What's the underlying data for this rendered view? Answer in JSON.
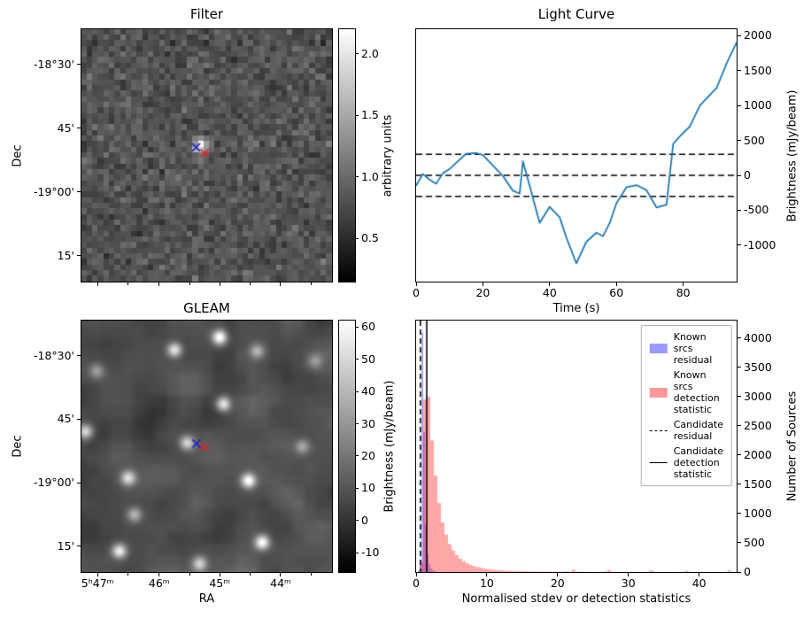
{
  "figure": {
    "background": "#ffffff"
  },
  "chart_data": [
    {
      "type": "heatmap",
      "title": "Filter",
      "ylabel": "Dec",
      "yticks": {
        "labels": [
          "-18°30'",
          "45'",
          "-19°00'",
          "15'"
        ],
        "fractions": [
          0.14,
          0.3925,
          0.645,
          0.8975
        ]
      },
      "xticks": {
        "labels": [],
        "fractions": [
          0.064,
          0.31,
          0.552,
          0.795
        ],
        "minor_fractions": [
          0.1865,
          0.4335,
          0.6735,
          0.9175
        ]
      },
      "colorbar": {
        "label": "arbitrary units",
        "tick_labels": [
          "0.5",
          "1.0",
          "1.5",
          "2.0"
        ],
        "tick_values": [
          0.5,
          1.0,
          1.5,
          2.0
        ],
        "vmin": 0.15,
        "vmax": 2.2
      },
      "image": {
        "grid": 45,
        "mean": 0.82,
        "sigma": 0.17,
        "seed": 11,
        "source": {
          "x": 0.478,
          "y": 0.462,
          "peak": 2.2
        }
      },
      "markers": [
        {
          "symbol": "x",
          "color": "#2222cc",
          "x": 0.458,
          "y": 0.468
        },
        {
          "symbol": "x",
          "color": "#d62728",
          "x": 0.492,
          "y": 0.492
        }
      ]
    },
    {
      "type": "line",
      "title": "Light Curve",
      "xlabel": "Time (s)",
      "ylabel": "Brightness (mJy/beam)",
      "line_color": "#1f77b4",
      "xlim": [
        0,
        96
      ],
      "ylim": [
        -1520,
        2090
      ],
      "xticks": [
        0,
        20,
        40,
        60,
        80
      ],
      "yticks": [
        -1000,
        -500,
        0,
        500,
        1000,
        1500,
        2000
      ],
      "threshold_lines": [
        300,
        0,
        -300
      ],
      "x": [
        0,
        2,
        4,
        6,
        8,
        10,
        12,
        15,
        18,
        20,
        23,
        26,
        29,
        31,
        32,
        34,
        37,
        40,
        43,
        45,
        48,
        51,
        54,
        56,
        58,
        60,
        63,
        66,
        69,
        72,
        75,
        77,
        79,
        82,
        85,
        88,
        90,
        93,
        96
      ],
      "y": [
        -150,
        20,
        -60,
        -120,
        30,
        90,
        180,
        310,
        320,
        290,
        140,
        -10,
        -220,
        -260,
        200,
        -150,
        -680,
        -450,
        -600,
        -890,
        -1260,
        -950,
        -820,
        -870,
        -680,
        -400,
        -170,
        -140,
        -210,
        -460,
        -420,
        450,
        560,
        700,
        1000,
        1150,
        1250,
        1600,
        1900
      ]
    },
    {
      "type": "heatmap",
      "title": "GLEAM",
      "xlabel": "RA",
      "ylabel": "Dec",
      "yticks": {
        "labels": [
          "-18°30'",
          "45'",
          "-19°00'",
          "15'"
        ],
        "fractions": [
          0.14,
          0.3925,
          0.645,
          0.8975
        ]
      },
      "xticks": {
        "labels": [
          "5ʰ47ᵐ",
          "46ᵐ",
          "45ᵐ",
          "44ᵐ"
        ],
        "fractions": [
          0.064,
          0.31,
          0.552,
          0.795
        ],
        "minor_fractions": [
          0.1865,
          0.4335,
          0.6735,
          0.9175
        ]
      },
      "colorbar": {
        "label": "Brightness (mJy/beam)",
        "tick_labels": [
          "-10",
          "0",
          "10",
          "20",
          "30",
          "40",
          "50",
          "60"
        ],
        "tick_values": [
          -10,
          0,
          10,
          20,
          30,
          40,
          50,
          60
        ],
        "vmin": -16,
        "vmax": 62
      },
      "seed": 5,
      "background": {
        "mean": 8,
        "sigma": 13
      },
      "sources": [
        [
          0.55,
          0.065,
          58
        ],
        [
          0.37,
          0.115,
          48
        ],
        [
          0.7,
          0.12,
          30
        ],
        [
          0.93,
          0.16,
          22
        ],
        [
          0.06,
          0.2,
          24
        ],
        [
          0.015,
          0.44,
          45
        ],
        [
          0.565,
          0.33,
          50
        ],
        [
          0.42,
          0.485,
          42
        ],
        [
          0.185,
          0.625,
          45
        ],
        [
          0.665,
          0.635,
          55
        ],
        [
          0.21,
          0.77,
          32
        ],
        [
          0.88,
          0.5,
          26
        ],
        [
          0.72,
          0.88,
          55
        ],
        [
          0.15,
          0.915,
          50
        ],
        [
          0.47,
          0.965,
          40
        ]
      ],
      "markers": [
        {
          "symbol": "x",
          "color": "#2222cc",
          "x": 0.459,
          "y": 0.489
        },
        {
          "symbol": "x",
          "color": "#d62728",
          "x": 0.491,
          "y": 0.503
        }
      ]
    },
    {
      "type": "bar",
      "title": "",
      "xlabel": "Normalised stdev or detection statistics",
      "ylabel": "Number of Sources",
      "xlim": [
        0,
        45.3
      ],
      "ylim": [
        0,
        4300
      ],
      "xticks": [
        0,
        10,
        20,
        30,
        40
      ],
      "yticks": [
        0,
        500,
        1000,
        1500,
        2000,
        2500,
        3000,
        3500,
        4000
      ],
      "series": [
        {
          "name": "Known srcs residual",
          "color": "#0000ff",
          "alpha": 0.35,
          "bin_start": 0,
          "bin_width": 0.25,
          "counts": [
            0,
            20,
            180,
            4100,
            2400,
            820,
            310,
            130,
            60,
            30,
            16,
            9,
            5,
            3,
            2,
            1,
            1,
            0,
            0,
            0
          ]
        },
        {
          "name": "Known srcs detection statistic",
          "color": "#ff0000",
          "alpha": 0.35,
          "bin_start": 0,
          "bin_width": 0.5,
          "counts": [
            0,
            160,
            2950,
            3000,
            2250,
            1650,
            1180,
            850,
            640,
            480,
            370,
            290,
            230,
            185,
            150,
            122,
            100,
            84,
            70,
            58,
            50,
            43,
            37,
            32,
            28,
            24,
            21,
            19,
            17,
            15,
            14,
            12,
            11,
            10,
            9,
            9,
            8,
            8,
            7,
            7,
            6,
            6,
            12,
            5,
            40,
            8,
            5,
            4,
            4,
            4,
            3,
            3,
            3,
            8,
            35,
            6,
            3,
            3,
            2,
            2,
            2,
            2,
            2,
            2,
            2,
            6,
            30,
            5,
            2,
            2,
            2,
            1,
            1,
            1,
            1,
            4,
            25,
            4,
            1,
            1,
            1,
            1,
            1,
            1,
            1,
            1,
            1,
            1,
            30,
            1
          ]
        }
      ],
      "candidate_lines": [
        {
          "name": "Candidate residual",
          "style": "dashed",
          "x": 0.6
        },
        {
          "name": "Candidate detection statistic",
          "style": "solid",
          "x": 1.5
        }
      ]
    }
  ]
}
